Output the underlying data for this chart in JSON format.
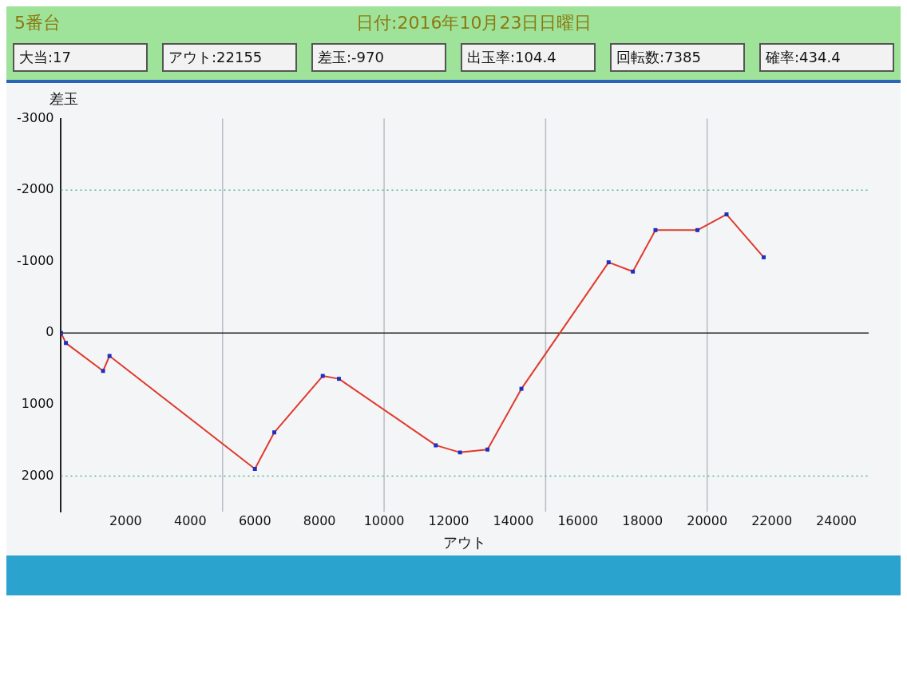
{
  "chart_data": {
    "type": "line",
    "title": "5番台",
    "subtitle": "日付:2016年10月23日日曜日",
    "xlabel": "アウト",
    "ylabel": "差玉",
    "annotations": [
      "大当:17",
      "アウト:22155",
      "差玉:-970",
      "出玉率:104.4",
      "回転数:7385",
      "確率:434.4"
    ],
    "x": [
      0,
      150,
      1300,
      1500,
      6000,
      6600,
      8100,
      8600,
      11600,
      12350,
      13200,
      14250,
      16950,
      17700,
      18400,
      19700,
      20600,
      21750
    ],
    "series": [
      {
        "color": "#e03a2e",
        "values": [
          0,
          140,
          530,
          320,
          1900,
          1390,
          600,
          640,
          1570,
          1670,
          1630,
          780,
          -990,
          -860,
          -1440,
          -1440,
          -1660,
          -1060
        ]
      }
    ],
    "xlim": [
      0,
      25000
    ],
    "xticks": [
      2000,
      4000,
      6000,
      8000,
      10000,
      12000,
      14000,
      16000,
      18000,
      20000,
      22000,
      24000
    ],
    "ylim": [
      2500,
      -3000
    ],
    "yticks": [
      -3000,
      -2000,
      -1000,
      0,
      1000,
      2000
    ],
    "grid": false,
    "legend": false,
    "marker": "square",
    "line_style": "solid",
    "ref_lines": [
      {
        "axis": "x",
        "value": 5000,
        "color": "#b8bcc4",
        "line_style": "solid"
      },
      {
        "axis": "x",
        "value": 10000,
        "color": "#b8bcc4",
        "line_style": "solid"
      },
      {
        "axis": "x",
        "value": 15000,
        "color": "#b8bcc4",
        "line_style": "solid"
      },
      {
        "axis": "x",
        "value": 20000,
        "color": "#b8bcc4",
        "line_style": "solid"
      },
      {
        "axis": "y",
        "value": -2000,
        "color": "#4fb88a",
        "line_style": "dotted"
      },
      {
        "axis": "y",
        "value": 2000,
        "color": "#4fb88a",
        "line_style": "dotted"
      },
      {
        "axis": "y",
        "value": 0,
        "color": "#222222",
        "line_style": "solid"
      }
    ]
  }
}
